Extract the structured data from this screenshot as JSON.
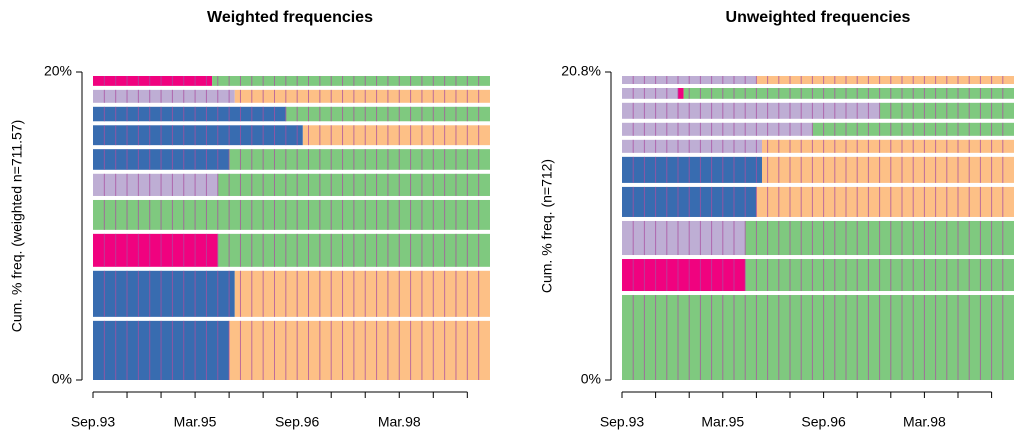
{
  "chart_data": [
    {
      "type": "sequence-frequency",
      "title": "Weighted frequencies",
      "ylabel": "Cum. % freq. (weighted n=711.57)",
      "ylim": [
        0,
        20
      ],
      "yticks": [
        {
          "value": 0,
          "label": "0%"
        },
        {
          "value": 20,
          "label": "20%"
        }
      ],
      "xlim": [
        0,
        70
      ],
      "xticks": [
        {
          "value": 0,
          "label": "Sep.93"
        },
        {
          "value": 6,
          "label": null
        },
        {
          "value": 12,
          "label": null
        },
        {
          "value": 18,
          "label": "Mar.95"
        },
        {
          "value": 24,
          "label": null
        },
        {
          "value": 30,
          "label": null
        },
        {
          "value": 36,
          "label": "Sep.96"
        },
        {
          "value": 42,
          "label": null
        },
        {
          "value": 48,
          "label": null
        },
        {
          "value": 54,
          "label": "Mar.98"
        },
        {
          "value": 60,
          "label": null
        },
        {
          "value": 66,
          "label": null
        }
      ],
      "state_colors": [
        "#386cb0",
        "#fdc086",
        "#7fc97f",
        "#beaed4",
        "#f0027f"
      ],
      "cell_border_color": "#a94fa0",
      "rows": [
        {
          "freq": 4.1,
          "spells": [
            [
              0,
              24
            ],
            [
              1,
              46
            ]
          ]
        },
        {
          "freq": 3.25,
          "spells": [
            [
              0,
              25
            ],
            [
              1,
              45
            ]
          ]
        },
        {
          "freq": 2.4,
          "spells": [
            [
              4,
              22
            ],
            [
              2,
              48
            ]
          ]
        },
        {
          "freq": 2.2,
          "spells": [
            [
              2,
              70
            ]
          ]
        },
        {
          "freq": 1.7,
          "spells": [
            [
              3,
              22
            ],
            [
              2,
              48
            ]
          ]
        },
        {
          "freq": 1.6,
          "spells": [
            [
              0,
              24
            ],
            [
              2,
              46
            ]
          ]
        },
        {
          "freq": 1.55,
          "spells": [
            [
              0,
              37
            ],
            [
              1,
              33
            ]
          ]
        },
        {
          "freq": 1.2,
          "spells": [
            [
              0,
              34
            ],
            [
              2,
              36
            ]
          ]
        },
        {
          "freq": 1.1,
          "spells": [
            [
              3,
              25
            ],
            [
              1,
              45
            ]
          ]
        },
        {
          "freq": 0.9,
          "spells": [
            [
              4,
              21
            ],
            [
              2,
              49
            ]
          ]
        }
      ]
    },
    {
      "type": "sequence-frequency",
      "title": "Unweighted frequencies",
      "ylabel": "Cum. % freq. (n=712)",
      "ylim": [
        0,
        20.8
      ],
      "yticks": [
        {
          "value": 0,
          "label": "0%"
        },
        {
          "value": 20.8,
          "label": "20.8%"
        }
      ],
      "xlim": [
        0,
        70
      ],
      "xticks": [
        {
          "value": 0,
          "label": "Sep.93"
        },
        {
          "value": 6,
          "label": null
        },
        {
          "value": 12,
          "label": null
        },
        {
          "value": 18,
          "label": "Mar.95"
        },
        {
          "value": 24,
          "label": null
        },
        {
          "value": 30,
          "label": null
        },
        {
          "value": 36,
          "label": "Sep.96"
        },
        {
          "value": 42,
          "label": null
        },
        {
          "value": 48,
          "label": null
        },
        {
          "value": 54,
          "label": "Mar.98"
        },
        {
          "value": 60,
          "label": null
        },
        {
          "value": 66,
          "label": null
        }
      ],
      "state_colors": [
        "#386cb0",
        "#fdc086",
        "#7fc97f",
        "#beaed4",
        "#f0027f"
      ],
      "cell_border_color": "#a94fa0",
      "rows": [
        {
          "freq": 6.01,
          "spells": [
            [
              2,
              70
            ]
          ]
        },
        {
          "freq": 2.43,
          "spells": [
            [
              4,
              22
            ],
            [
              2,
              48
            ]
          ]
        },
        {
          "freq": 2.57,
          "spells": [
            [
              3,
              22
            ],
            [
              2,
              48
            ]
          ]
        },
        {
          "freq": 2.3,
          "spells": [
            [
              0,
              24
            ],
            [
              1,
              46
            ]
          ]
        },
        {
          "freq": 2.03,
          "spells": [
            [
              0,
              25
            ],
            [
              1,
              45
            ]
          ]
        },
        {
          "freq": 1.15,
          "spells": [
            [
              3,
              25
            ],
            [
              1,
              45
            ]
          ]
        },
        {
          "freq": 1.15,
          "spells": [
            [
              3,
              34
            ],
            [
              2,
              36
            ]
          ]
        },
        {
          "freq": 1.35,
          "spells": [
            [
              3,
              46
            ],
            [
              2,
              24
            ]
          ]
        },
        {
          "freq": 1.0,
          "spells": [
            [
              3,
              10
            ],
            [
              4,
              1
            ],
            [
              2,
              59
            ]
          ]
        },
        {
          "freq": 0.81,
          "spells": [
            [
              3,
              24
            ],
            [
              1,
              46
            ]
          ]
        }
      ]
    }
  ]
}
